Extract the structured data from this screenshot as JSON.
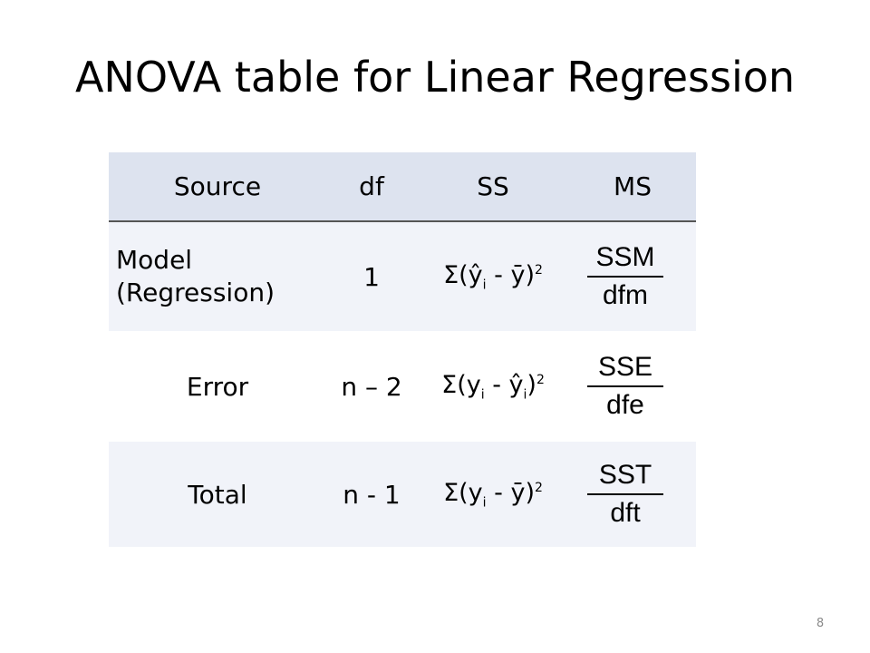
{
  "slide": {
    "title": "ANOVA table for Linear Regression",
    "page_number": "8"
  },
  "table": {
    "headers": {
      "source": "Source",
      "df": "df",
      "ss": "SS",
      "ms": "MS"
    },
    "rows": [
      {
        "source_line1": "Model",
        "source_line2": "(Regression)",
        "df": "1",
        "ss_pre": "Σ(ŷ",
        "ss_sub": "i",
        "ss_mid": " - ȳ)",
        "ss_sub2": "",
        "ss_post": "",
        "ss_sup": "2",
        "ms_num": "SSM",
        "ms_den": "dfm"
      },
      {
        "source_line1": "Error",
        "df": "n – 2",
        "ss_pre": "Σ(y",
        "ss_sub": "i",
        "ss_mid": " - ŷ",
        "ss_sub2": "i",
        "ss_post": ")",
        "ss_sup": "2",
        "ms_num": "SSE",
        "ms_den": "dfe"
      },
      {
        "source_line1": "Total",
        "df": "n - 1",
        "ss_pre": "Σ(y",
        "ss_sub": "i",
        "ss_mid": " - ȳ)",
        "ss_sub2": "",
        "ss_post": "",
        "ss_sup": "2",
        "ms_num": "SST",
        "ms_den": "dft"
      }
    ]
  }
}
